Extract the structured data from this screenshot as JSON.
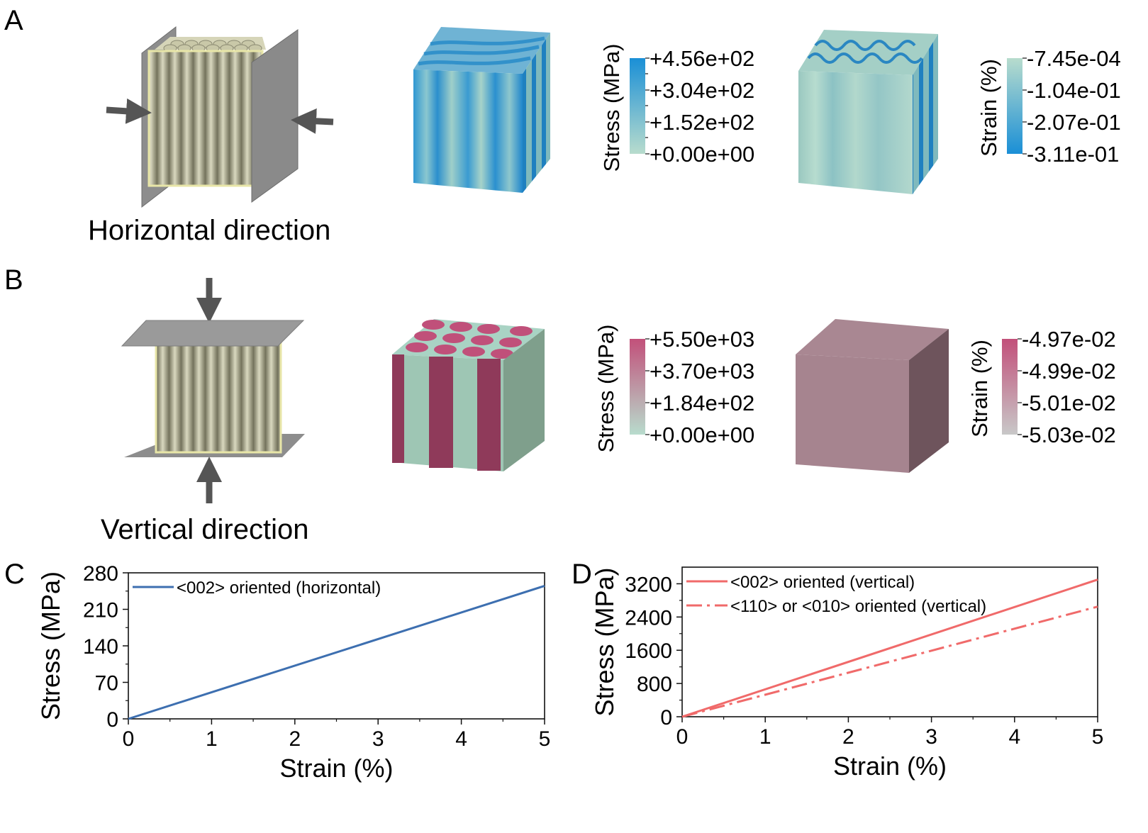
{
  "panels": {
    "A": {
      "letter": "A",
      "caption": "Horizontal direction",
      "stress_bar": {
        "label": "Stress (MPa)",
        "ticks": [
          "+4.56e+02",
          "+3.04e+02",
          "+1.52e+02",
          "+0.00e+00"
        ],
        "color_top": "#1a8fd6",
        "color_bottom": "#b8dccd"
      },
      "strain_bar": {
        "label": "Strain (%)",
        "ticks": [
          "-7.45e-04",
          "-1.04e-01",
          "-2.07e-01",
          "-3.11e-01"
        ],
        "color_top": "#b8dccd",
        "color_bottom": "#1a8fd6"
      }
    },
    "B": {
      "letter": "B",
      "caption": "Vertical direction",
      "stress_bar": {
        "label": "Stress (MPa)",
        "ticks": [
          "+5.50e+03",
          "+3.70e+03",
          "+1.84e+02",
          "+0.00e+00"
        ],
        "color_top": "#c2507a",
        "color_bottom": "#b8dccd"
      },
      "strain_bar": {
        "label": "Strain (%)",
        "ticks": [
          "-4.97e-02",
          "-4.99e-02",
          "-5.01e-02",
          "-5.03e-02"
        ],
        "color_top": "#c2507a",
        "color_bottom": "#c8c8c8"
      }
    },
    "C": {
      "letter": "C"
    },
    "D": {
      "letter": "D"
    }
  },
  "chart_data": [
    {
      "panel": "C",
      "type": "line",
      "xlabel": "Strain (%)",
      "ylabel": "Stress (MPa)",
      "xlim": [
        0,
        5
      ],
      "ylim": [
        0,
        280
      ],
      "xticks": [
        0,
        1,
        2,
        3,
        4,
        5
      ],
      "yticks": [
        0,
        70,
        140,
        210,
        280
      ],
      "legend_position": "top-left",
      "grid": false,
      "series": [
        {
          "name": "<002> oriented (horizontal)",
          "color": "#3d6fb0",
          "dash": "solid",
          "x": [
            0,
            5
          ],
          "y": [
            0,
            255
          ]
        }
      ]
    },
    {
      "panel": "D",
      "type": "line",
      "xlabel": "Strain (%)",
      "ylabel": "Stress (MPa)",
      "xlim": [
        0,
        5
      ],
      "ylim": [
        0,
        3600
      ],
      "xticks": [
        0,
        1,
        2,
        3,
        4,
        5
      ],
      "yticks": [
        0,
        800,
        1600,
        2400,
        3200
      ],
      "legend_position": "top-left",
      "grid": false,
      "series": [
        {
          "name": "<002> oriented (vertical)",
          "color": "#f06a6a",
          "dash": "solid",
          "x": [
            0,
            5
          ],
          "y": [
            0,
            3300
          ]
        },
        {
          "name": "<110> or <010> oriented (vertical)",
          "color": "#f06a6a",
          "dash": "dashdot",
          "x": [
            0,
            5
          ],
          "y": [
            0,
            2650
          ]
        }
      ]
    }
  ]
}
